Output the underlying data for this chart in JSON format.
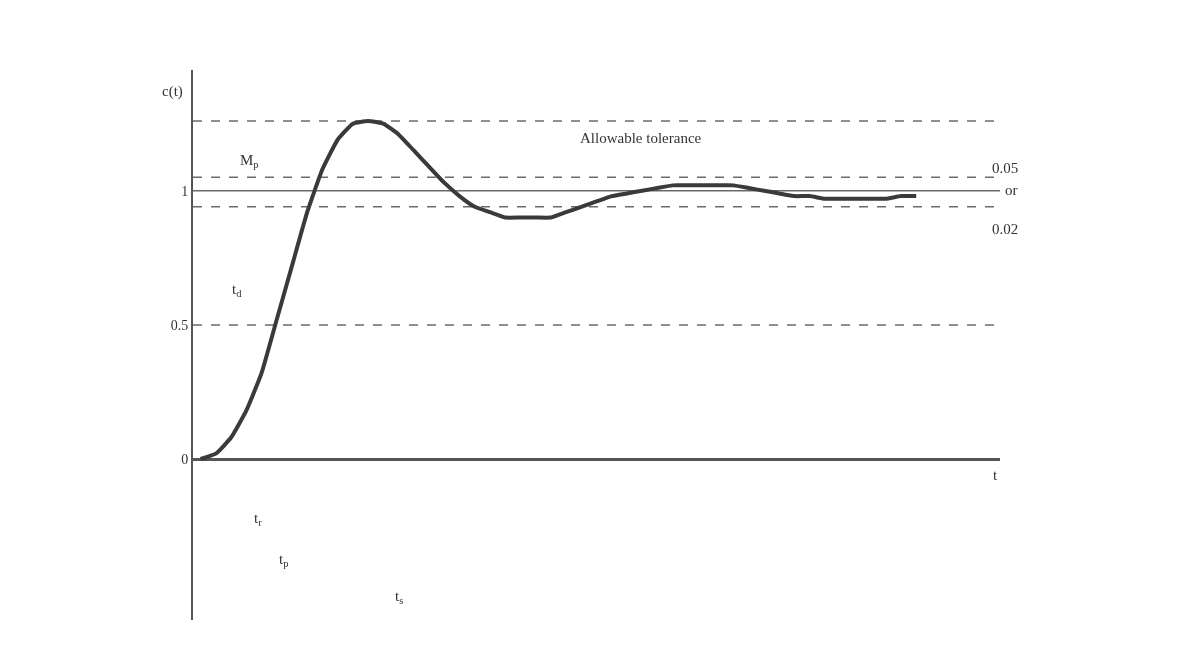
{
  "chart_data": {
    "type": "line",
    "xlabel": "t",
    "ylabel": "c(t)",
    "categories": [
      null,
      null,
      null,
      null,
      null,
      null,
      null,
      null,
      null,
      null,
      null,
      null,
      null,
      null,
      null,
      null,
      null,
      null,
      null,
      null,
      null,
      null,
      null,
      null,
      null,
      null,
      null,
      null,
      null,
      null,
      null,
      null,
      null,
      null,
      null,
      null,
      null,
      null,
      null,
      null,
      null,
      null,
      null,
      null,
      null,
      null,
      null,
      null
    ],
    "series": [
      {
        "color": "#3a3a3a",
        "values": [
          0,
          0.02,
          0.08,
          0.18,
          0.32,
          0.52,
          0.72,
          0.92,
          1.08,
          1.19,
          1.25,
          1.26,
          1.25,
          1.21,
          1.15,
          1.09,
          1.03,
          0.98,
          0.94,
          0.92,
          0.9,
          0.9,
          0.9,
          0.9,
          0.92,
          0.94,
          0.96,
          0.98,
          0.99,
          1.0,
          1.01,
          1.02,
          1.02,
          1.02,
          1.02,
          1.02,
          1.01,
          1.0,
          0.99,
          0.98,
          0.98,
          0.97,
          0.97,
          0.97,
          0.97,
          0.97,
          0.98,
          0.98
        ]
      }
    ],
    "ylim": [
      -0.6,
      1.45
    ],
    "yticks": [
      0,
      0.5,
      1
    ],
    "tick_labels": "y",
    "grid": false,
    "marker": "none",
    "line_style": "solid",
    "ref_lines": [
      {
        "axis": "y",
        "value": 1,
        "color": "#6a6a6a",
        "line_style": "solid"
      },
      {
        "axis": "y",
        "value": 1.26,
        "color": "#6a6a6a",
        "line_style": "dashed"
      },
      {
        "axis": "y",
        "value": 1.05,
        "color": "#6a6a6a",
        "line_style": "dashed"
      },
      {
        "axis": "y",
        "value": 0.94,
        "color": "#6a6a6a",
        "line_style": "dashed"
      },
      {
        "axis": "y",
        "value": 0.5,
        "color": "#6a6a6a",
        "line_style": "dashed"
      }
    ],
    "annotations": [
      "Allowable tolerance",
      "M$_{p}$",
      "t$_{d}$",
      "t$_{r}$",
      "t$_{p}$",
      "t$_{s}$",
      "0.05",
      "or",
      "0.02"
    ]
  }
}
